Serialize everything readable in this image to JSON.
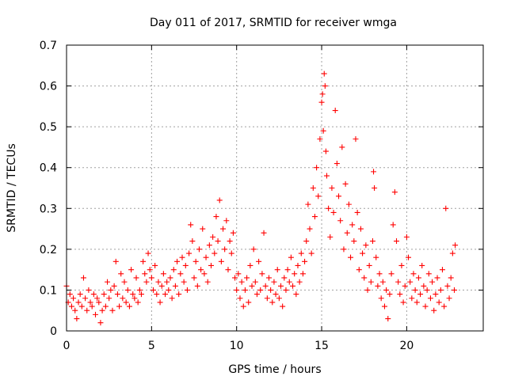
{
  "chart_data": {
    "type": "scatter",
    "title": "Day 011 of 2017, SRMTID for receiver wmga",
    "xlabel": "GPS time / hours",
    "ylabel": "SRMTID / TECUs",
    "xlim": [
      0,
      24.5
    ],
    "ylim": [
      0,
      0.7
    ],
    "x_ticks": [
      0,
      5,
      10,
      15,
      20
    ],
    "x_tick_labels": [
      "0",
      "5",
      "10",
      "15",
      "20"
    ],
    "y_ticks": [
      0,
      0.1,
      0.2,
      0.3,
      0.4,
      0.5,
      0.6,
      0.7
    ],
    "y_tick_labels": [
      "0",
      "0.1",
      "0.2",
      "0.3",
      "0.4",
      "0.5",
      "0.6",
      "0.7"
    ],
    "grid": true,
    "marker": "+",
    "color": "#ff0000",
    "series": [
      {
        "name": "wmga",
        "points": [
          [
            0.0,
            0.11
          ],
          [
            0.1,
            0.07
          ],
          [
            0.2,
            0.09
          ],
          [
            0.3,
            0.06
          ],
          [
            0.4,
            0.08
          ],
          [
            0.5,
            0.05
          ],
          [
            0.6,
            0.03
          ],
          [
            0.7,
            0.07
          ],
          [
            0.8,
            0.09
          ],
          [
            0.9,
            0.06
          ],
          [
            1.0,
            0.13
          ],
          [
            1.1,
            0.08
          ],
          [
            1.2,
            0.05
          ],
          [
            1.3,
            0.1
          ],
          [
            1.4,
            0.07
          ],
          [
            1.5,
            0.06
          ],
          [
            1.6,
            0.09
          ],
          [
            1.7,
            0.04
          ],
          [
            1.8,
            0.08
          ],
          [
            1.9,
            0.07
          ],
          [
            2.0,
            0.02
          ],
          [
            2.1,
            0.05
          ],
          [
            2.2,
            0.09
          ],
          [
            2.3,
            0.06
          ],
          [
            2.4,
            0.12
          ],
          [
            2.5,
            0.08
          ],
          [
            2.6,
            0.1
          ],
          [
            2.7,
            0.05
          ],
          [
            2.8,
            0.11
          ],
          [
            2.9,
            0.17
          ],
          [
            3.0,
            0.09
          ],
          [
            3.1,
            0.06
          ],
          [
            3.2,
            0.14
          ],
          [
            3.3,
            0.08
          ],
          [
            3.4,
            0.12
          ],
          [
            3.5,
            0.07
          ],
          [
            3.6,
            0.1
          ],
          [
            3.7,
            0.06
          ],
          [
            3.8,
            0.15
          ],
          [
            3.9,
            0.09
          ],
          [
            4.0,
            0.08
          ],
          [
            4.1,
            0.13
          ],
          [
            4.2,
            0.07
          ],
          [
            4.3,
            0.1
          ],
          [
            4.4,
            0.09
          ],
          [
            4.5,
            0.17
          ],
          [
            4.6,
            0.14
          ],
          [
            4.7,
            0.12
          ],
          [
            4.8,
            0.19
          ],
          [
            4.9,
            0.15
          ],
          [
            5.0,
            0.13
          ],
          [
            5.1,
            0.1
          ],
          [
            5.2,
            0.16
          ],
          [
            5.3,
            0.09
          ],
          [
            5.4,
            0.12
          ],
          [
            5.5,
            0.07
          ],
          [
            5.6,
            0.11
          ],
          [
            5.7,
            0.14
          ],
          [
            5.8,
            0.09
          ],
          [
            5.9,
            0.12
          ],
          [
            6.0,
            0.1
          ],
          [
            6.1,
            0.13
          ],
          [
            6.2,
            0.08
          ],
          [
            6.3,
            0.15
          ],
          [
            6.4,
            0.11
          ],
          [
            6.5,
            0.17
          ],
          [
            6.6,
            0.09
          ],
          [
            6.7,
            0.14
          ],
          [
            6.8,
            0.18
          ],
          [
            6.9,
            0.12
          ],
          [
            7.0,
            0.16
          ],
          [
            7.1,
            0.1
          ],
          [
            7.2,
            0.19
          ],
          [
            7.3,
            0.26
          ],
          [
            7.4,
            0.22
          ],
          [
            7.5,
            0.13
          ],
          [
            7.6,
            0.17
          ],
          [
            7.7,
            0.11
          ],
          [
            7.8,
            0.2
          ],
          [
            7.9,
            0.15
          ],
          [
            8.0,
            0.25
          ],
          [
            8.1,
            0.14
          ],
          [
            8.2,
            0.18
          ],
          [
            8.3,
            0.12
          ],
          [
            8.4,
            0.21
          ],
          [
            8.5,
            0.16
          ],
          [
            8.6,
            0.23
          ],
          [
            8.7,
            0.19
          ],
          [
            8.8,
            0.28
          ],
          [
            8.9,
            0.22
          ],
          [
            9.0,
            0.32
          ],
          [
            9.1,
            0.17
          ],
          [
            9.2,
            0.25
          ],
          [
            9.3,
            0.2
          ],
          [
            9.4,
            0.27
          ],
          [
            9.5,
            0.15
          ],
          [
            9.6,
            0.22
          ],
          [
            9.7,
            0.19
          ],
          [
            9.8,
            0.24
          ],
          [
            9.9,
            0.13
          ],
          [
            10.0,
            0.1
          ],
          [
            10.1,
            0.14
          ],
          [
            10.2,
            0.08
          ],
          [
            10.3,
            0.12
          ],
          [
            10.4,
            0.06
          ],
          [
            10.5,
            0.1
          ],
          [
            10.6,
            0.13
          ],
          [
            10.7,
            0.07
          ],
          [
            10.8,
            0.16
          ],
          [
            10.9,
            0.11
          ],
          [
            11.0,
            0.2
          ],
          [
            11.1,
            0.12
          ],
          [
            11.2,
            0.09
          ],
          [
            11.3,
            0.17
          ],
          [
            11.4,
            0.1
          ],
          [
            11.5,
            0.14
          ],
          [
            11.6,
            0.24
          ],
          [
            11.7,
            0.11
          ],
          [
            11.8,
            0.08
          ],
          [
            11.9,
            0.13
          ],
          [
            12.0,
            0.1
          ],
          [
            12.1,
            0.07
          ],
          [
            12.2,
            0.12
          ],
          [
            12.3,
            0.09
          ],
          [
            12.4,
            0.15
          ],
          [
            12.5,
            0.08
          ],
          [
            12.6,
            0.11
          ],
          [
            12.7,
            0.06
          ],
          [
            12.8,
            0.13
          ],
          [
            12.9,
            0.1
          ],
          [
            13.0,
            0.15
          ],
          [
            13.1,
            0.12
          ],
          [
            13.2,
            0.18
          ],
          [
            13.3,
            0.11
          ],
          [
            13.4,
            0.14
          ],
          [
            13.5,
            0.09
          ],
          [
            13.6,
            0.16
          ],
          [
            13.7,
            0.12
          ],
          [
            13.8,
            0.19
          ],
          [
            13.9,
            0.14
          ],
          [
            14.0,
            0.17
          ],
          [
            14.1,
            0.22
          ],
          [
            14.2,
            0.31
          ],
          [
            14.3,
            0.25
          ],
          [
            14.4,
            0.19
          ],
          [
            14.5,
            0.35
          ],
          [
            14.6,
            0.28
          ],
          [
            14.7,
            0.4
          ],
          [
            14.8,
            0.33
          ],
          [
            14.9,
            0.47
          ],
          [
            15.0,
            0.56
          ],
          [
            15.05,
            0.58
          ],
          [
            15.1,
            0.49
          ],
          [
            15.15,
            0.63
          ],
          [
            15.2,
            0.6
          ],
          [
            15.25,
            0.44
          ],
          [
            15.3,
            0.38
          ],
          [
            15.4,
            0.3
          ],
          [
            15.5,
            0.23
          ],
          [
            15.6,
            0.35
          ],
          [
            15.7,
            0.29
          ],
          [
            15.8,
            0.54
          ],
          [
            15.9,
            0.41
          ],
          [
            16.0,
            0.33
          ],
          [
            16.1,
            0.27
          ],
          [
            16.2,
            0.45
          ],
          [
            16.3,
            0.2
          ],
          [
            16.4,
            0.36
          ],
          [
            16.5,
            0.24
          ],
          [
            16.6,
            0.31
          ],
          [
            16.7,
            0.18
          ],
          [
            16.8,
            0.26
          ],
          [
            16.9,
            0.22
          ],
          [
            17.0,
            0.47
          ],
          [
            17.1,
            0.29
          ],
          [
            17.2,
            0.15
          ],
          [
            17.3,
            0.25
          ],
          [
            17.4,
            0.19
          ],
          [
            17.5,
            0.13
          ],
          [
            17.6,
            0.21
          ],
          [
            17.7,
            0.1
          ],
          [
            17.8,
            0.16
          ],
          [
            17.9,
            0.12
          ],
          [
            18.0,
            0.22
          ],
          [
            18.05,
            0.39
          ],
          [
            18.1,
            0.35
          ],
          [
            18.2,
            0.18
          ],
          [
            18.3,
            0.11
          ],
          [
            18.4,
            0.14
          ],
          [
            18.5,
            0.08
          ],
          [
            18.6,
            0.12
          ],
          [
            18.7,
            0.06
          ],
          [
            18.8,
            0.1
          ],
          [
            18.9,
            0.03
          ],
          [
            19.0,
            0.09
          ],
          [
            19.1,
            0.14
          ],
          [
            19.2,
            0.26
          ],
          [
            19.3,
            0.34
          ],
          [
            19.4,
            0.22
          ],
          [
            19.5,
            0.12
          ],
          [
            19.6,
            0.09
          ],
          [
            19.7,
            0.16
          ],
          [
            19.8,
            0.07
          ],
          [
            19.9,
            0.11
          ],
          [
            20.0,
            0.23
          ],
          [
            20.1,
            0.18
          ],
          [
            20.2,
            0.12
          ],
          [
            20.3,
            0.08
          ],
          [
            20.4,
            0.14
          ],
          [
            20.5,
            0.1
          ],
          [
            20.6,
            0.07
          ],
          [
            20.7,
            0.13
          ],
          [
            20.8,
            0.09
          ],
          [
            20.9,
            0.16
          ],
          [
            21.0,
            0.11
          ],
          [
            21.1,
            0.06
          ],
          [
            21.2,
            0.1
          ],
          [
            21.3,
            0.14
          ],
          [
            21.4,
            0.08
          ],
          [
            21.5,
            0.12
          ],
          [
            21.6,
            0.05
          ],
          [
            21.7,
            0.09
          ],
          [
            21.8,
            0.13
          ],
          [
            21.9,
            0.07
          ],
          [
            22.0,
            0.1
          ],
          [
            22.1,
            0.15
          ],
          [
            22.2,
            0.06
          ],
          [
            22.3,
            0.3
          ],
          [
            22.4,
            0.11
          ],
          [
            22.5,
            0.08
          ],
          [
            22.6,
            0.13
          ],
          [
            22.7,
            0.19
          ],
          [
            22.8,
            0.1
          ],
          [
            22.85,
            0.21
          ]
        ]
      }
    ]
  }
}
